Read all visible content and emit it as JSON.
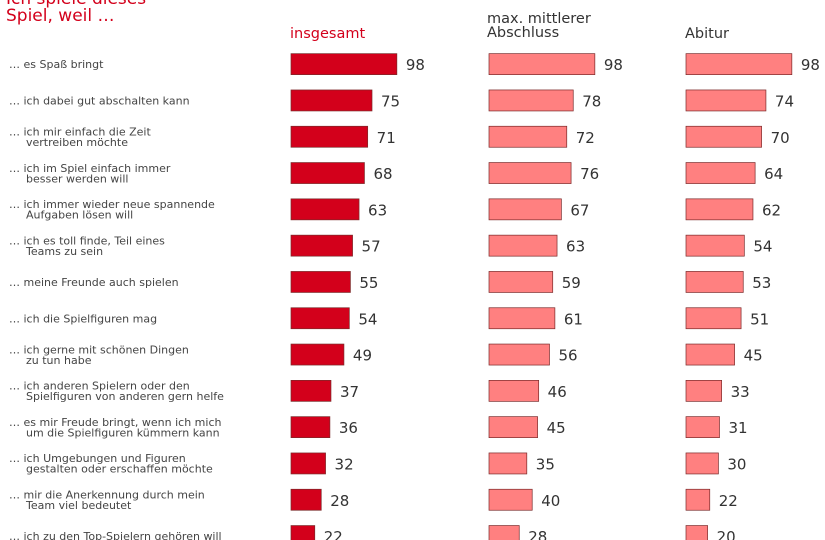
{
  "title": [
    "Ich spiele dieses",
    "Spiel, weil …"
  ],
  "chart_data": {
    "type": "bar",
    "orientation": "horizontal",
    "title": "Ich spiele dieses Spiel, weil …",
    "categories": [
      [
        "… es Spaß bringt"
      ],
      [
        "… ich dabei gut abschalten kann"
      ],
      [
        "… ich mir einfach die Zeit",
        "vertreiben möchte"
      ],
      [
        "… ich im Spiel einfach immer",
        "besser werden will"
      ],
      [
        "… ich immer wieder neue spannende",
        "Aufgaben lösen will"
      ],
      [
        "… ich es toll finde, Teil eines",
        "Teams zu sein"
      ],
      [
        "… meine Freunde auch spielen"
      ],
      [
        "… ich die Spielfiguren mag"
      ],
      [
        "… ich gerne mit schönen Dingen",
        "zu tun habe"
      ],
      [
        "… ich anderen Spielern oder den",
        "Spielfiguren von anderen gern helfe"
      ],
      [
        "… es mir Freude bringt, wenn ich mich",
        "um die Spielfiguren kümmern kann"
      ],
      [
        "… ich Umgebungen und Figuren",
        "gestalten oder erschaffen möchte"
      ],
      [
        "… mir die Anerkennung durch mein",
        "Team viel bedeutet"
      ],
      [
        "… ich zu den Top-Spielern gehören will"
      ]
    ],
    "series": [
      {
        "name": "insgesamt",
        "color": "#d3001b",
        "values": [
          98,
          75,
          71,
          68,
          63,
          57,
          55,
          54,
          49,
          37,
          36,
          32,
          28,
          22
        ]
      },
      {
        "name": "max. mittlerer Abschluss",
        "color": "#ff8080",
        "values": [
          98,
          78,
          72,
          76,
          67,
          63,
          59,
          61,
          56,
          46,
          45,
          35,
          40,
          28
        ]
      },
      {
        "name": "Abitur",
        "color": "#ff8080",
        "values": [
          98,
          74,
          70,
          64,
          62,
          54,
          53,
          51,
          45,
          33,
          31,
          30,
          22,
          20
        ]
      }
    ],
    "xlim": [
      0,
      100
    ],
    "grid": false,
    "legend": "column headers"
  }
}
